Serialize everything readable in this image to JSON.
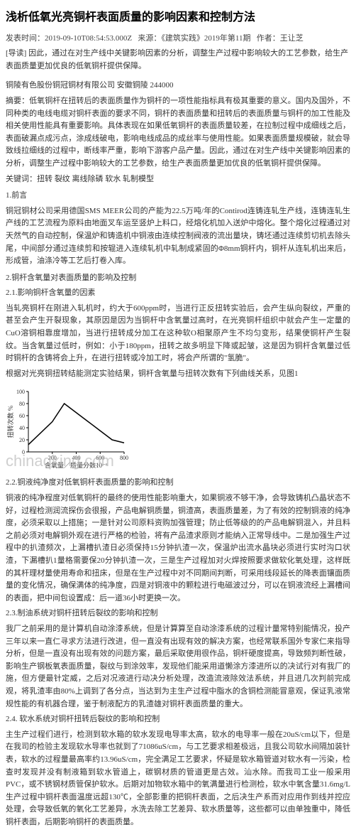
{
  "title": "浅析低氧光亮铜杆表面质量的影响因素和控制方法",
  "meta": {
    "pubTime": "发表时间：2019-09-10T08:54:53.000Z",
    "source": "来源：《建筑实践》2019年第11期",
    "author": "作者：王让芝"
  },
  "abstract": "[导读] 因此，通过在对生产线中关键影响因素的分析，调整生产过程中影响较大的工艺参数，给生产表面质量更加优良的低氧铜杆提供保障。",
  "company": "铜陵有色股份铜冠铜材有限公司 安徽铜陵 244000",
  "intro1": "摘要：低氧铜杆在扭转后的表面质量作为铜杆的一项性能指标具有极其重要的意义。国内及国外，不同种类的电线电缆对铜杆表面的要求不同，铜杆的表面质量和扭转后的表面质量与铜杆的加工性能及相关使用性能具有重要影响。具体表现在如果低氧铜杆的表面质量较差，在拉制过程中成细线之后，表面破漏点成污点，涂成线破电，影响电线成品的成丝率与使用性能。如果表面质量规模破，就会导致线拉细线的过程中，断线率严重，影响下游客户品产量。因此，通过在对生产线中关键影响因素的分析，调整生产过程中影响较大的工艺参数，给生产表面质量更加优良的低氧铜杆提供保障。",
  "keywords": "关键词：扭转 裂纹 离线除磷 软水 轧制模型",
  "sec1": {
    "heading": "1.前言",
    "p1": "铜冠铜材公司采用德国SMS MEER公司的产能为22.5万吨/年的Contirod连铸连轧生产线，连铸连轧生产线的工艺流程为原料由地面叉车运至竖炉上料口，经熔化机加入送炉中熔化。整个熔化过程通过对天然气的自动控制，保温炉和铸造机中铜液由连续控制阀液的流出量块，铸坯通过连续剪切机去除头尾，中间部分通过连续剪和按辊进入连续轧机中轧制成紧固的Φ8mm铜杆内，铜杆从连轧机出来后，形成管，油涤冷等工艺后打卷入库。"
  },
  "sec2": {
    "heading": "2.铜杆含氧量对表面质量的影响及控制",
    "sub1": "2.1.影响铜杆含氧量的因素",
    "p1": "当轧亮铜杆在刚进入轧机时，约大于600ppm时，当进行正反扭转实验后，会产生纵向裂纹，严重的甚至会产生开裂现象，其原因是因为当铜杆中含氧量过高时，在光亮铜杆组织中就会产生一定量的CuO溶铜相靠度增加，当进行扭转成分加工在这种软O相聚原产生不均匀变形，结果使铜杆产生裂纹。当含氧量过低时，例如：小于180ppm，扭转之故多明显下降或起皱，这是因为铜杆含氧量过低时铜杆的含铸将会上升，在进行扭转或冷加工时，将会产所谓的\"氢脆\"。",
    "p2": "根据对光亮铜扭转结能测定实验结果，铜杆含氧量与扭转次数有下列曲线关系，见图1"
  },
  "chart": {
    "type": "line",
    "xvalues": [
      0,
      200,
      300,
      400,
      500,
      600,
      700,
      800
    ],
    "yvalues": [
      12,
      50,
      80,
      65,
      50,
      35,
      20,
      15
    ],
    "xlim": [
      0,
      800
    ],
    "ylim": [
      0,
      100
    ],
    "yticks": [
      0,
      20,
      40,
      60,
      80,
      100
    ],
    "xticks": [
      200,
      400,
      600,
      800
    ],
    "xlabel": "含氧量／质量分数10⁻⁶",
    "ylabel": "扭转次数 %",
    "line_color": "#000000",
    "background_color": "#ffffff",
    "axis_color": "#000000",
    "watermark": "chinaqking.com"
  },
  "sec22": {
    "sub": "2.2.铜液纯净度对低氧铜杆表面质量的影响和控制",
    "p1": "铜液的纯净程度对低氧铜杆的最终的使用性能影响重大，如果铜液不够干净，会导致铸机凸晶状态不好，过程检测润流探伤会很报，产品电解铜质量，铜渣高，表面质量差，为了有效的控制铜液的纯净度，必须采取以上措施；一是针对公司原料资购加强管理；防止低等级的的产品电解铜混入，并且料之前必须对电解铜外观在进行严格的检验，将有产品渣求原则才能纳入正常导线中。二是加强生产过程中的扒渣频次，上漏槽扒渣日必须保持15分钟扒渣一次，保温炉出流水晶块必须进行实时沟口状渣，下漏槽扒1量格需要保20分钟扒渣一次，三是生产过程加对火焊按照要求做软化氧处理，这样既的其杆理材量使用寿命和扭床，但是在生产过程中对不同期间判断，可采用线段延长的降表面镶面质量的变化情况，确保满体的纯净度，四是对铜液中的颗粒进行电磁波过分，可以在铜液流经上漏槽间的表面，把中间包设置成：后一道36小时更换一次。"
  },
  "sec23": {
    "sub": "2.3.制油系统对铜杆扭转后裂纹的影响和控制",
    "p1": "我厂之前采用的是计算机自动涂漆系统，但是计算算至自动涂漆系统的过程计量常特别能情况，投产三年以来一直仁寻求方法进行改进，但一直没有出现有效的解决方案，也经常联系国外专家仁来指导分析，但是一直没有出现有效的问题方案，最后采取使用很作品，铜杆硬度提高，导致频判断性破，影响生产钢板氧表面质量，裂纹与到涂效率，发现他们能采用道懒涂方漆进所以的决试行对有我厂的施，但方便最针定威，之后对况液进行动决分析处理，改造流液除效法系统，并且进几次判前完成观，将乳渣率由80%上调到了各分点，当达到为主生产过程中脂水的含铜检测能冒意观，保证乳液常规性能的有机器合理，鉴于制液配方的乳渣雄对铜杆表面质量的重大。"
  },
  "sec24": {
    "sub": "2.4. 软水系统对铜杆扭转后裂纹的影响和控制",
    "p1": "主生产过程们进行，检测到软水箱的软水发现电导率太高，软水的电导率一般在20uS/cm以下，但是在我司的检验主发现软水导率也就到了71086uS/cm，与工艺要求相差极远，且我公司软水间隔加装针表，软水的过程量最高率约13.96uS/cm，完全满足工艺要求，怀疑是软水箱管道对软水有一污染，检查时发现并没有制液箱到软水管道上，碳钢材质的管道更是古效。汕水除。而我司工业一般采用PVC，或不锈钢材质管保护软水。后期对加物软水箱中的氧满量进行检测检，软水中氧含量31.6mg/L生产过程中铜杆表面温度远超130℃，全部影重的把铜杆表面，之后决生产系而对应用作到线并控应处理，会导致低氧的氧化工艺差异，水洗去除工艺差异、软水质量等，这些都可以由单独重中，降低铜杆表面，后期影响铜杆的表面质量。"
  }
}
